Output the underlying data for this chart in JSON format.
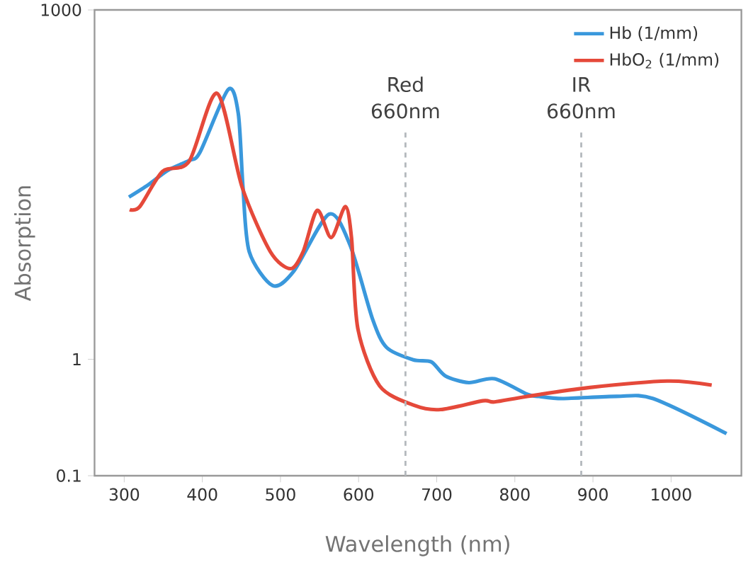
{
  "chart_data": {
    "type": "line",
    "xlabel": "Wavelength (nm)",
    "ylabel": "Absorption",
    "log": "y",
    "xlim": [
      262,
      1090
    ],
    "ylim": [
      0.1,
      1000
    ],
    "xticks": [
      300,
      400,
      500,
      600,
      700,
      800,
      900,
      1000
    ],
    "yticks": [
      0.1,
      1,
      1000
    ],
    "grid": false,
    "legend": "top right",
    "marker": "none",
    "line_style": "solid",
    "series": [
      {
        "name": "Hb (1/mm)",
        "color": "#3a98dc",
        "x": [
          306,
          331,
          356,
          383,
          397,
          433,
          446,
          452,
          460,
          490,
          517,
          562,
          589,
          618,
          636,
          670,
          693,
          711,
          741,
          774,
          816,
          831,
          861,
          930,
          977,
          1071
        ],
        "values": [
          24.7,
          31.6,
          42,
          51,
          60,
          207,
          129,
          29.9,
          8.4,
          4.3,
          5.7,
          17.6,
          9.6,
          2.2,
          1.26,
          0.99,
          0.95,
          0.72,
          0.63,
          0.68,
          0.5,
          0.48,
          0.46,
          0.48,
          0.46,
          0.23
        ]
      },
      {
        "name": "HbO$_{2}$ (1/mm)",
        "color": "#e5493a",
        "x": [
          307,
          320,
          349,
          383,
          419,
          451,
          487,
          513,
          529,
          547,
          565,
          583,
          591,
          599,
          627,
          672,
          705,
          759,
          774,
          816,
          894,
          995,
          1052
        ],
        "values": [
          19.3,
          20.5,
          41,
          50,
          192,
          29.9,
          8.4,
          6.0,
          8.4,
          19,
          11.1,
          20.5,
          10.9,
          1.84,
          0.59,
          0.4,
          0.37,
          0.44,
          0.43,
          0.48,
          0.57,
          0.65,
          0.6
        ]
      }
    ],
    "ref_lines": [
      {
        "axis": "x",
        "value": 660,
        "label": "Red 660nm",
        "color": "#b4b9bd",
        "line_style": "dashed"
      },
      {
        "axis": "x",
        "value": 885,
        "label": "IR 660nm",
        "color": "#b4b9bd",
        "line_style": "dashed"
      }
    ]
  }
}
